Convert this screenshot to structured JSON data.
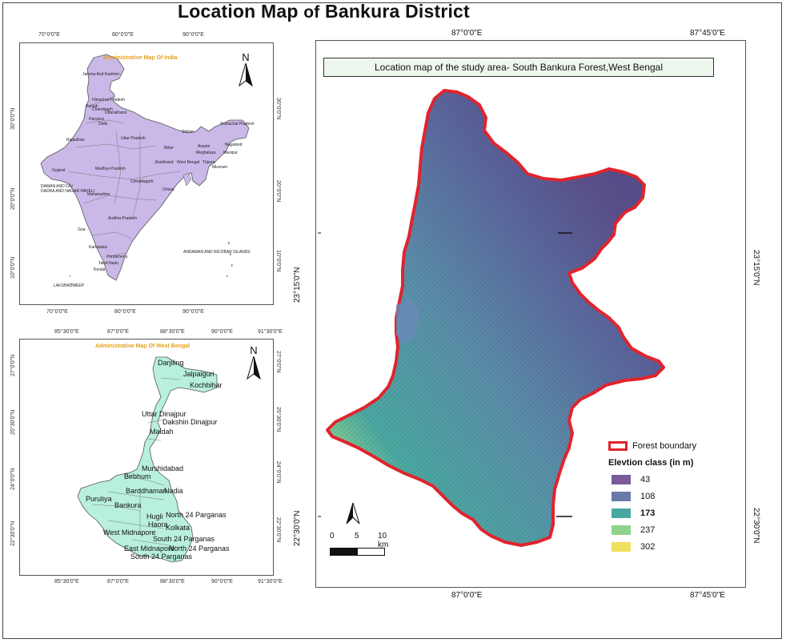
{
  "title": {
    "main": "Location Map",
    "of": "of",
    "rest": "Bankura District"
  },
  "india_map": {
    "title": "Administrative Map Of India",
    "top_ticks": [
      "70°0'0\"E",
      "80°0'0\"E",
      "90°0'0\"E"
    ],
    "bottom_ticks": [
      "70°0'0\"E",
      "80°0'0\"E",
      "90°0'0\"E"
    ],
    "left_ticks": [
      "30°0'0\"N",
      "20°0'0\"N",
      "10°0'0\"N"
    ],
    "right_ticks": [
      "30°0'0\"N",
      "20°0'0\"N",
      "10°0'0\"N"
    ],
    "states": [
      "Jammu And Kashmir",
      "Himachal Pradesh",
      "Punjab",
      "Chandigarh",
      "Uttarakhand",
      "Haryana",
      "Delhi",
      "Rajasthan",
      "Uttar Pradesh",
      "Bihar",
      "Sikkim",
      "Arunachal Pradesh",
      "Assam",
      "Nagaland",
      "Meghalaya",
      "Manipur",
      "Jharkhand",
      "West Bengal",
      "Tripura",
      "Mizoram",
      "Gujarat",
      "Madhya Pradesh",
      "Chhattisgarh",
      "Orissa",
      "DAMAN AND DIU",
      "DADRA AND NAGAR HAVELI",
      "Maharashtra",
      "Andhra Pradesh",
      "Goa",
      "Karnataka",
      "Pondicherry",
      "Tamil Nadu",
      "Kerala",
      "LAKSHADWEEP",
      "ANDAMAN AND NICOBAR ISLANDS"
    ],
    "fill": "#c9b8e8"
  },
  "wb_map": {
    "title": "Administrative Map Of West Bengal",
    "top_ticks": [
      "85°30'0\"E",
      "87°0'0\"E",
      "88°30'0\"E",
      "90°0'0\"E",
      "91°30'0\"E"
    ],
    "bottom_ticks": [
      "85°30'0\"E",
      "87°0'0\"E",
      "88°30'0\"E",
      "90°0'0\"E",
      "91°30'0\"E"
    ],
    "left_ticks": [
      "27°0'0\"N",
      "25°30'0\"N",
      "24°0'0\"N",
      "22°30'0\"N"
    ],
    "right_ticks": [
      "27°0'0\"N",
      "25°30'0\"N",
      "24°0'0\"N",
      "22°30'0\"N"
    ],
    "districts": [
      "Darjiling",
      "Jalpaiguri",
      "Kochbihar",
      "Uttar Dinajpur",
      "Dakshin Dinajpur",
      "Maldah",
      "Murshidabad",
      "Birbhum",
      "Barddhaman",
      "Nadia",
      "Puruliya",
      "Bankura",
      "Hugli",
      "North 24 Parganas",
      "Haora",
      "Kolkata",
      "West Midnapore",
      "South 24 Parganas",
      "East Midnapore",
      "North 24 Parganas",
      "South 24 Parganas"
    ],
    "fill": "#b8f0dc"
  },
  "study_map": {
    "title": "Location map of the study area- South Bankura Forest,West Bengal",
    "top_ticks": [
      "87°0'0\"E",
      "87°45'0\"E"
    ],
    "bottom_ticks": [
      "87°0'0\"E",
      "87°45'0\"E"
    ],
    "left_ticks": [
      "23°15'0\"N",
      "22°30'0\"N"
    ],
    "right_ticks": [
      "23°15'0\"N",
      "22°30'0\"N"
    ],
    "scale": {
      "labels": [
        "0",
        "5",
        "10 km"
      ]
    },
    "legend": {
      "boundary_label": "Forest boundary",
      "class_title": "Elevtion class (in m)",
      "classes": [
        {
          "label": "43",
          "color": "#7a5a9a"
        },
        {
          "label": "108",
          "color": "#6a7aa8"
        },
        {
          "label": "173",
          "color": "#4aa8a0"
        },
        {
          "label": "237",
          "color": "#8ed48e"
        },
        {
          "label": "302",
          "color": "#f0e060"
        }
      ],
      "boundary_color": "#e0242e"
    }
  },
  "north_symbol": "N"
}
